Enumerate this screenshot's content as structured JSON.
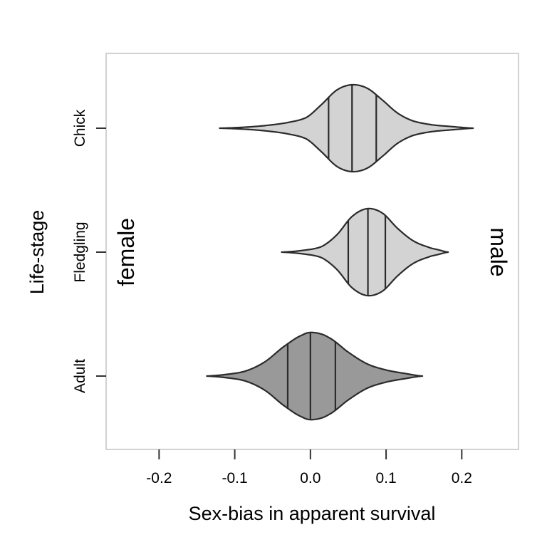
{
  "chart_data": {
    "type": "violin",
    "orientation": "horizontal",
    "xlabel": "Sex-bias in apparent survival",
    "ylabel": "Life-stage",
    "xlim": [
      -0.27,
      0.275
    ],
    "xticks": [
      -0.2,
      -0.1,
      0.0,
      0.1,
      0.2
    ],
    "xtick_labels": [
      "-0.2",
      "-0.1",
      "0.0",
      "0.1",
      "0.2"
    ],
    "categories": [
      "Chick",
      "Fledgling",
      "Adult"
    ],
    "grid": false,
    "legend": "none",
    "annotations": {
      "left": "female",
      "right": "male"
    },
    "series": [
      {
        "category": "Chick",
        "fill": "#d3d3d3",
        "quantiles": [
          0.024,
          0.055,
          0.087
        ],
        "profile": [
          [
            -0.12,
            0.0
          ],
          [
            -0.09,
            0.02
          ],
          [
            -0.06,
            0.06
          ],
          [
            -0.03,
            0.13
          ],
          [
            -0.005,
            0.25
          ],
          [
            0.015,
            0.55
          ],
          [
            0.035,
            0.88
          ],
          [
            0.055,
            1.0
          ],
          [
            0.075,
            0.92
          ],
          [
            0.095,
            0.65
          ],
          [
            0.115,
            0.35
          ],
          [
            0.135,
            0.17
          ],
          [
            0.16,
            0.08
          ],
          [
            0.185,
            0.04
          ],
          [
            0.215,
            0.0
          ]
        ]
      },
      {
        "category": "Fledgling",
        "fill": "#d3d3d3",
        "quantiles": [
          0.05,
          0.076,
          0.099
        ],
        "profile": [
          [
            -0.038,
            0.0
          ],
          [
            -0.01,
            0.04
          ],
          [
            0.015,
            0.13
          ],
          [
            0.035,
            0.4
          ],
          [
            0.055,
            0.82
          ],
          [
            0.075,
            1.0
          ],
          [
            0.095,
            0.9
          ],
          [
            0.115,
            0.55
          ],
          [
            0.135,
            0.27
          ],
          [
            0.155,
            0.12
          ],
          [
            0.17,
            0.05
          ],
          [
            0.182,
            0.0
          ]
        ]
      },
      {
        "category": "Adult",
        "fill": "#999999",
        "quantiles": [
          -0.03,
          0.0,
          0.033
        ],
        "profile": [
          [
            -0.137,
            0.0
          ],
          [
            -0.11,
            0.04
          ],
          [
            -0.085,
            0.12
          ],
          [
            -0.06,
            0.33
          ],
          [
            -0.035,
            0.68
          ],
          [
            -0.01,
            0.95
          ],
          [
            0.005,
            1.0
          ],
          [
            0.025,
            0.88
          ],
          [
            0.05,
            0.55
          ],
          [
            0.075,
            0.28
          ],
          [
            0.1,
            0.14
          ],
          [
            0.125,
            0.06
          ],
          [
            0.148,
            0.0
          ]
        ]
      }
    ]
  }
}
